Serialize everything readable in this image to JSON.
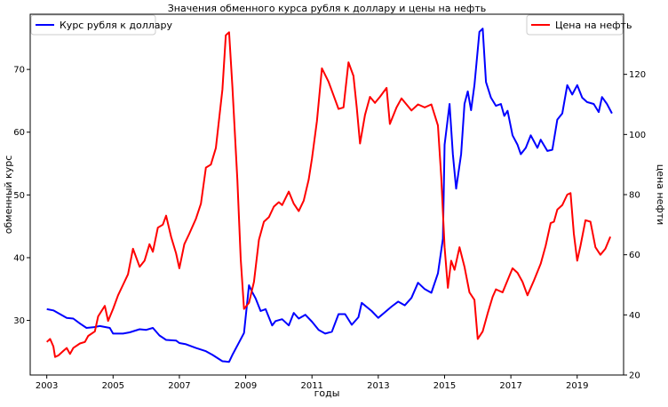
{
  "chart_data": {
    "type": "line",
    "title": "Значения обменного курса рубля к доллару и цены на нефть",
    "xlabel": "годы",
    "ylabel_left": "обменный курс",
    "ylabel_right": "цена нефти",
    "xlim": [
      2002.5,
      2020.4
    ],
    "ylim_left": [
      21.3,
      78.8
    ],
    "ylim_right": [
      20,
      140
    ],
    "x_ticks": [
      2003,
      2005,
      2007,
      2009,
      2011,
      2013,
      2015,
      2017,
      2019
    ],
    "y_ticks_left": [
      30,
      40,
      50,
      60,
      70
    ],
    "y_ticks_right": [
      20,
      40,
      60,
      80,
      100,
      120
    ],
    "grid": false,
    "legend_placement_left": "top-left",
    "legend_placement_right": "top-right",
    "series": [
      {
        "name": "Курс рубля к доллару",
        "axis": "left",
        "color": "#0000ff",
        "points": [
          [
            2003.0,
            31.8
          ],
          [
            2003.2,
            31.6
          ],
          [
            2003.4,
            31.0
          ],
          [
            2003.6,
            30.4
          ],
          [
            2003.8,
            30.3
          ],
          [
            2004.0,
            29.5
          ],
          [
            2004.2,
            28.8
          ],
          [
            2004.4,
            28.9
          ],
          [
            2004.6,
            29.1
          ],
          [
            2004.9,
            28.8
          ],
          [
            2005.0,
            27.9
          ],
          [
            2005.3,
            27.9
          ],
          [
            2005.5,
            28.1
          ],
          [
            2005.8,
            28.6
          ],
          [
            2006.0,
            28.5
          ],
          [
            2006.2,
            28.8
          ],
          [
            2006.4,
            27.6
          ],
          [
            2006.6,
            26.9
          ],
          [
            2006.9,
            26.8
          ],
          [
            2007.0,
            26.4
          ],
          [
            2007.2,
            26.2
          ],
          [
            2007.5,
            25.6
          ],
          [
            2007.8,
            25.1
          ],
          [
            2008.0,
            24.5
          ],
          [
            2008.3,
            23.5
          ],
          [
            2008.5,
            23.4
          ],
          [
            2008.6,
            24.5
          ],
          [
            2008.8,
            26.5
          ],
          [
            2008.95,
            28.0
          ],
          [
            2009.1,
            35.6
          ],
          [
            2009.2,
            34.5
          ],
          [
            2009.3,
            33.5
          ],
          [
            2009.45,
            31.5
          ],
          [
            2009.6,
            31.8
          ],
          [
            2009.8,
            29.2
          ],
          [
            2009.9,
            29.9
          ],
          [
            2010.1,
            30.2
          ],
          [
            2010.3,
            29.2
          ],
          [
            2010.45,
            31.2
          ],
          [
            2010.6,
            30.3
          ],
          [
            2010.8,
            30.9
          ],
          [
            2011.0,
            29.8
          ],
          [
            2011.2,
            28.5
          ],
          [
            2011.4,
            27.9
          ],
          [
            2011.6,
            28.2
          ],
          [
            2011.8,
            31.0
          ],
          [
            2012.0,
            31.0
          ],
          [
            2012.2,
            29.3
          ],
          [
            2012.4,
            30.5
          ],
          [
            2012.5,
            32.8
          ],
          [
            2012.8,
            31.5
          ],
          [
            2013.0,
            30.4
          ],
          [
            2013.2,
            31.3
          ],
          [
            2013.4,
            32.2
          ],
          [
            2013.6,
            33.0
          ],
          [
            2013.8,
            32.4
          ],
          [
            2014.0,
            33.6
          ],
          [
            2014.2,
            36.0
          ],
          [
            2014.4,
            35.0
          ],
          [
            2014.6,
            34.4
          ],
          [
            2014.8,
            37.5
          ],
          [
            2014.95,
            43.0
          ],
          [
            2015.0,
            58.0
          ],
          [
            2015.15,
            64.5
          ],
          [
            2015.25,
            56.5
          ],
          [
            2015.35,
            51.0
          ],
          [
            2015.5,
            56.5
          ],
          [
            2015.6,
            64.5
          ],
          [
            2015.7,
            66.5
          ],
          [
            2015.8,
            63.5
          ],
          [
            2015.9,
            67.5
          ],
          [
            2016.05,
            76.0
          ],
          [
            2016.15,
            76.5
          ],
          [
            2016.25,
            68.0
          ],
          [
            2016.4,
            65.5
          ],
          [
            2016.55,
            64.2
          ],
          [
            2016.7,
            64.5
          ],
          [
            2016.8,
            62.6
          ],
          [
            2016.9,
            63.4
          ],
          [
            2017.05,
            59.5
          ],
          [
            2017.2,
            58.0
          ],
          [
            2017.3,
            56.5
          ],
          [
            2017.45,
            57.5
          ],
          [
            2017.6,
            59.5
          ],
          [
            2017.8,
            57.5
          ],
          [
            2017.9,
            58.8
          ],
          [
            2018.1,
            57.0
          ],
          [
            2018.25,
            57.2
          ],
          [
            2018.4,
            62.0
          ],
          [
            2018.55,
            63.0
          ],
          [
            2018.7,
            67.5
          ],
          [
            2018.85,
            66.0
          ],
          [
            2019.0,
            67.5
          ],
          [
            2019.15,
            65.5
          ],
          [
            2019.3,
            64.8
          ],
          [
            2019.5,
            64.5
          ],
          [
            2019.65,
            63.2
          ],
          [
            2019.75,
            65.6
          ],
          [
            2019.9,
            64.5
          ],
          [
            2020.05,
            63.0
          ]
        ]
      },
      {
        "name": "Цена на нефть",
        "axis": "right",
        "color": "#ff0000",
        "points": [
          [
            2003.0,
            31.0
          ],
          [
            2003.1,
            32.0
          ],
          [
            2003.2,
            29.5
          ],
          [
            2003.25,
            26.0
          ],
          [
            2003.35,
            26.5
          ],
          [
            2003.5,
            28.0
          ],
          [
            2003.6,
            29.0
          ],
          [
            2003.7,
            27.0
          ],
          [
            2003.8,
            29.0
          ],
          [
            2004.0,
            30.5
          ],
          [
            2004.15,
            31.0
          ],
          [
            2004.25,
            33.0
          ],
          [
            2004.45,
            34.5
          ],
          [
            2004.55,
            39.5
          ],
          [
            2004.75,
            43.0
          ],
          [
            2004.85,
            38.0
          ],
          [
            2005.0,
            42.0
          ],
          [
            2005.15,
            46.5
          ],
          [
            2005.3,
            50.0
          ],
          [
            2005.45,
            53.5
          ],
          [
            2005.6,
            62.0
          ],
          [
            2005.8,
            56.0
          ],
          [
            2005.95,
            58.0
          ],
          [
            2006.1,
            63.5
          ],
          [
            2006.2,
            61.0
          ],
          [
            2006.35,
            69.0
          ],
          [
            2006.5,
            70.0
          ],
          [
            2006.6,
            73.0
          ],
          [
            2006.75,
            66.0
          ],
          [
            2006.9,
            60.5
          ],
          [
            2007.0,
            55.5
          ],
          [
            2007.15,
            63.5
          ],
          [
            2007.3,
            67.0
          ],
          [
            2007.5,
            72.0
          ],
          [
            2007.65,
            77.0
          ],
          [
            2007.8,
            89.0
          ],
          [
            2007.95,
            90.0
          ],
          [
            2008.1,
            95.5
          ],
          [
            2008.3,
            115.0
          ],
          [
            2008.4,
            133.0
          ],
          [
            2008.5,
            134.0
          ],
          [
            2008.6,
            116.0
          ],
          [
            2008.75,
            85.0
          ],
          [
            2008.85,
            58.5
          ],
          [
            2008.95,
            42.0
          ],
          [
            2009.1,
            44.0
          ],
          [
            2009.25,
            51.0
          ],
          [
            2009.4,
            65.0
          ],
          [
            2009.55,
            71.0
          ],
          [
            2009.7,
            72.5
          ],
          [
            2009.85,
            76.0
          ],
          [
            2010.0,
            77.5
          ],
          [
            2010.1,
            76.5
          ],
          [
            2010.3,
            81.0
          ],
          [
            2010.45,
            77.0
          ],
          [
            2010.6,
            74.5
          ],
          [
            2010.75,
            78.0
          ],
          [
            2010.9,
            85.0
          ],
          [
            2011.0,
            92.0
          ],
          [
            2011.15,
            104.5
          ],
          [
            2011.3,
            122.0
          ],
          [
            2011.5,
            117.5
          ],
          [
            2011.65,
            113.0
          ],
          [
            2011.8,
            108.5
          ],
          [
            2011.95,
            109.0
          ],
          [
            2012.1,
            124.0
          ],
          [
            2012.25,
            119.5
          ],
          [
            2012.35,
            109.0
          ],
          [
            2012.45,
            97.0
          ],
          [
            2012.6,
            106.5
          ],
          [
            2012.75,
            112.5
          ],
          [
            2012.9,
            110.5
          ],
          [
            2013.05,
            112.5
          ],
          [
            2013.25,
            115.5
          ],
          [
            2013.35,
            103.5
          ],
          [
            2013.55,
            109.0
          ],
          [
            2013.7,
            112.0
          ],
          [
            2013.85,
            110.0
          ],
          [
            2014.0,
            108.0
          ],
          [
            2014.2,
            110.0
          ],
          [
            2014.4,
            109.0
          ],
          [
            2014.6,
            110.0
          ],
          [
            2014.8,
            103.0
          ],
          [
            2014.9,
            86.0
          ],
          [
            2015.0,
            62.5
          ],
          [
            2015.1,
            49.0
          ],
          [
            2015.2,
            58.0
          ],
          [
            2015.3,
            55.0
          ],
          [
            2015.45,
            62.5
          ],
          [
            2015.6,
            56.0
          ],
          [
            2015.75,
            47.5
          ],
          [
            2015.9,
            45.0
          ],
          [
            2016.0,
            32.0
          ],
          [
            2016.15,
            34.5
          ],
          [
            2016.3,
            40.5
          ],
          [
            2016.45,
            46.0
          ],
          [
            2016.55,
            48.5
          ],
          [
            2016.75,
            47.5
          ],
          [
            2016.9,
            51.5
          ],
          [
            2017.05,
            55.5
          ],
          [
            2017.2,
            54.0
          ],
          [
            2017.35,
            51.0
          ],
          [
            2017.5,
            46.5
          ],
          [
            2017.7,
            51.5
          ],
          [
            2017.9,
            57.0
          ],
          [
            2018.05,
            63.0
          ],
          [
            2018.2,
            70.5
          ],
          [
            2018.3,
            71.0
          ],
          [
            2018.4,
            75.0
          ],
          [
            2018.55,
            76.5
          ],
          [
            2018.7,
            80.0
          ],
          [
            2018.8,
            80.5
          ],
          [
            2018.9,
            67.0
          ],
          [
            2019.0,
            58.0
          ],
          [
            2019.1,
            63.0
          ],
          [
            2019.25,
            71.5
          ],
          [
            2019.4,
            71.0
          ],
          [
            2019.55,
            62.5
          ],
          [
            2019.7,
            60.0
          ],
          [
            2019.85,
            62.0
          ],
          [
            2020.0,
            66.0
          ]
        ]
      }
    ]
  }
}
